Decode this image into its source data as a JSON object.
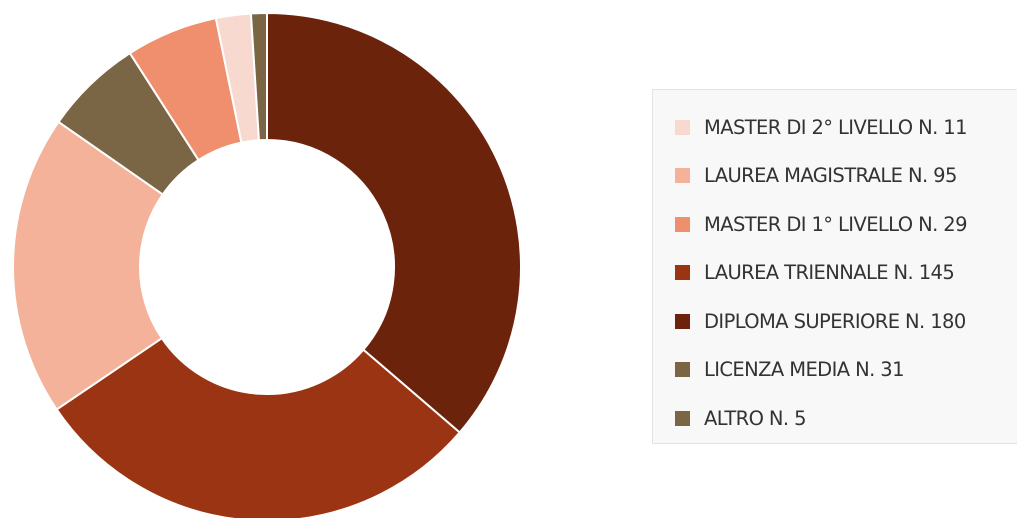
{
  "chart_data": {
    "type": "pie",
    "donut": true,
    "categories": [
      "MASTER DI 2° LIVELLO N. 11",
      "LAUREA MAGISTRALE N. 95",
      "MASTER DI 1° LIVELLO N. 29",
      "LAUREA TRIENNALE N. 145",
      "DIPLOMA SUPERIORE N. 180",
      "LICENZA MEDIA N. 31",
      "ALTRO N. 5"
    ],
    "values": [
      11,
      95,
      29,
      145,
      180,
      31,
      5
    ],
    "colors": [
      "#f8d9cf",
      "#f4b29b",
      "#ef8f6d",
      "#9a3412",
      "#6b230c",
      "#7a6545",
      "#7a6545"
    ],
    "slice_order": [
      4,
      3,
      1,
      5,
      2,
      0,
      6
    ],
    "start_angle_deg": 0,
    "direction": "clockwise",
    "legend_position": "right"
  }
}
